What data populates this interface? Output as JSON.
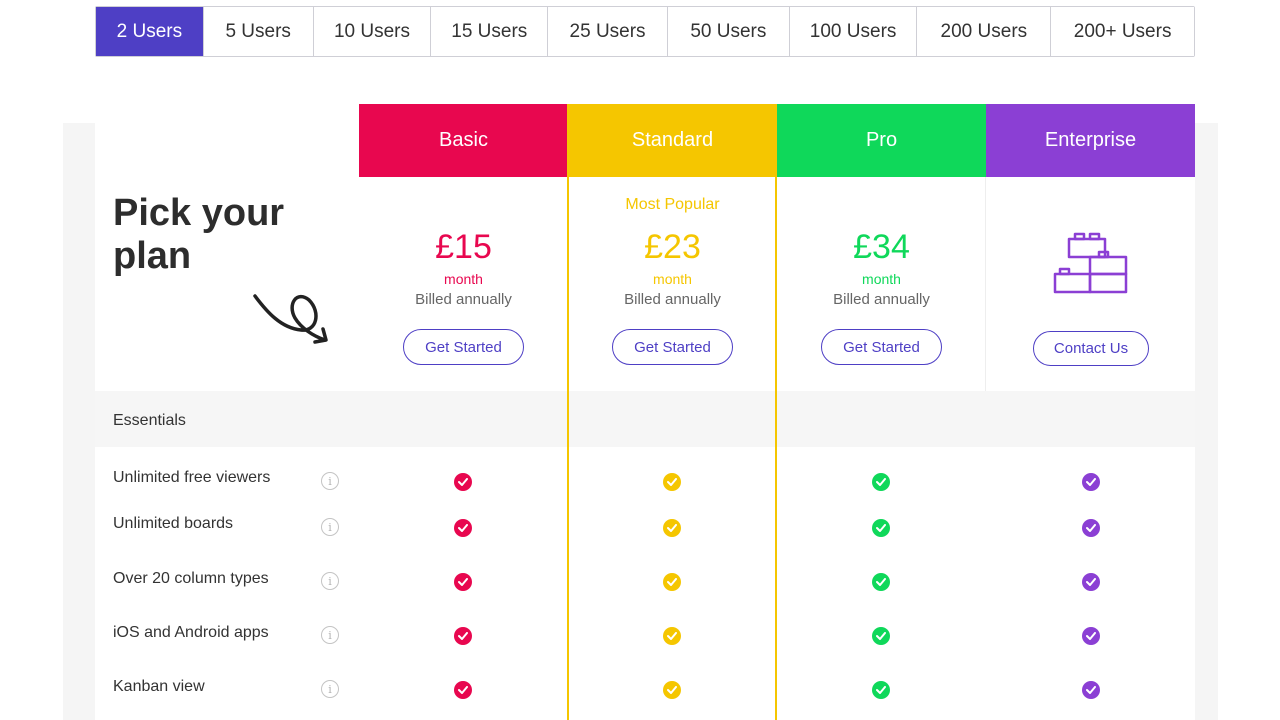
{
  "user_tabs": [
    "2 Users",
    "5 Users",
    "10 Users",
    "15 Users",
    "25 Users",
    "50 Users",
    "100 Users",
    "200 Users",
    "200+ Users"
  ],
  "active_tab_index": 0,
  "hero": {
    "title": "Pick your\nplan"
  },
  "plans": [
    {
      "name": "Basic",
      "color": "#e8074f",
      "price": "£15",
      "period": "month",
      "billed": "Billed annually",
      "cta": "Get Started"
    },
    {
      "name": "Standard",
      "color": "#f5c600",
      "popular": "Most Popular",
      "price": "£23",
      "period": "month",
      "billed": "Billed annually",
      "cta": "Get Started"
    },
    {
      "name": "Pro",
      "color": "#0fd85a",
      "price": "£34",
      "period": "month",
      "billed": "Billed annually",
      "cta": "Get Started"
    },
    {
      "name": "Enterprise",
      "color": "#8b3fd4",
      "icon": "building-blocks-icon",
      "cta": "Contact Us"
    }
  ],
  "section": {
    "label": "Essentials"
  },
  "features": [
    {
      "label": "Unlimited free viewers",
      "included": [
        true,
        true,
        true,
        true
      ]
    },
    {
      "label": "Unlimited boards",
      "included": [
        true,
        true,
        true,
        true
      ]
    },
    {
      "label": "Over 20 column types",
      "included": [
        true,
        true,
        true,
        true
      ]
    },
    {
      "label": "iOS and Android apps",
      "included": [
        true,
        true,
        true,
        true
      ]
    },
    {
      "label": "Kanban view",
      "included": [
        true,
        true,
        true,
        true
      ]
    }
  ],
  "colors": {
    "accent": "#4e3fc5",
    "period_text": "#e8074f"
  }
}
